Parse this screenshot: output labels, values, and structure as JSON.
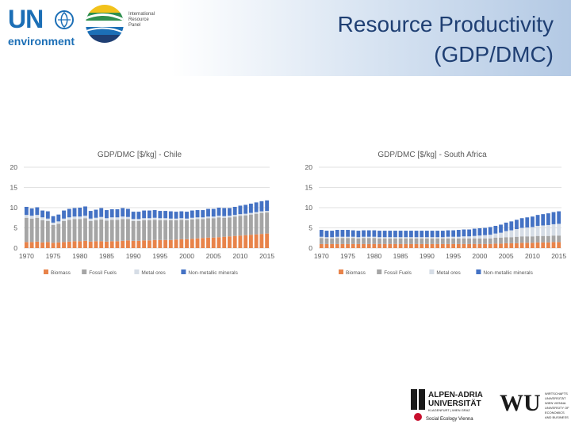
{
  "header": {
    "title": "Resource Productivity\n(GDP/DMC)",
    "un_letters": "UN",
    "un_sub": "environment",
    "irp_text": "International\nResource\nPanel"
  },
  "legend": [
    "Biomass",
    "Fossil Fuels",
    "Metal ores",
    "Non-metallic minerals"
  ],
  "colors": {
    "biomass": "#e8834a",
    "fossil": "#a5a5a5",
    "metal": "#d6dde6",
    "nonmetal": "#4472c4",
    "title_blue": "#1f3f73",
    "un_blue": "#1c6fb6"
  },
  "footer": {
    "aau_text": "ALPEN-ADRIA\nUNIVERSITÄT",
    "aau_sub": "KLAGENFURT | WIEN GRAZ",
    "aau_sub2": "Social Ecology Vienna",
    "wu_text": "WU",
    "wu_sub": "WIRTSCHAFTS\nUNIVERSITÄT\nWIEN VIENNA\nUNIVERSITY OF\nECONOMICS\nAND BUSINESS"
  },
  "chart_data": [
    {
      "type": "bar",
      "stacked": true,
      "title": "GDP/DMC [$/kg] - Chile",
      "ylim": [
        0,
        20
      ],
      "yticks": [
        0,
        5,
        10,
        15,
        20
      ],
      "xticks": [
        "1970",
        "1975",
        "1980",
        "1985",
        "1990",
        "1995",
        "2000",
        "2005",
        "2010",
        "2015"
      ],
      "legend_position": "bottom",
      "categories": [
        1970,
        1971,
        1972,
        1973,
        1974,
        1975,
        1976,
        1977,
        1978,
        1979,
        1980,
        1981,
        1982,
        1983,
        1984,
        1985,
        1986,
        1987,
        1988,
        1989,
        1990,
        1991,
        1992,
        1993,
        1994,
        1995,
        1996,
        1997,
        1998,
        1999,
        2000,
        2001,
        2002,
        2003,
        2004,
        2005,
        2006,
        2007,
        2008,
        2009,
        2010,
        2011,
        2012,
        2013,
        2014,
        2015
      ],
      "series": [
        {
          "name": "Biomass",
          "values": [
            1.5,
            1.5,
            1.6,
            1.4,
            1.5,
            1.3,
            1.4,
            1.5,
            1.6,
            1.7,
            1.7,
            1.8,
            1.6,
            1.7,
            1.7,
            1.6,
            1.7,
            1.7,
            1.8,
            1.9,
            1.8,
            1.8,
            1.9,
            1.9,
            2.0,
            2.0,
            2.0,
            2.0,
            2.1,
            2.2,
            2.2,
            2.3,
            2.4,
            2.5,
            2.6,
            2.6,
            2.7,
            2.8,
            2.9,
            3.0,
            3.1,
            3.2,
            3.3,
            3.4,
            3.5,
            3.6
          ]
        },
        {
          "name": "Fossil Fuels",
          "values": [
            6.0,
            5.8,
            5.9,
            5.5,
            5.2,
            4.4,
            4.6,
            5.2,
            5.4,
            5.5,
            5.5,
            5.6,
            5.1,
            5.2,
            5.4,
            5.2,
            5.3,
            5.3,
            5.4,
            5.3,
            4.9,
            4.9,
            5.0,
            5.0,
            5.0,
            4.9,
            4.9,
            4.9,
            4.8,
            4.8,
            4.7,
            4.8,
            4.8,
            4.7,
            4.8,
            4.8,
            4.9,
            4.7,
            4.7,
            4.8,
            4.9,
            4.9,
            5.0,
            5.1,
            5.2,
            5.2
          ]
        },
        {
          "name": "Metal ores",
          "values": [
            0.7,
            0.7,
            0.7,
            0.7,
            0.6,
            0.6,
            0.6,
            0.6,
            0.6,
            0.6,
            0.6,
            0.6,
            0.6,
            0.6,
            0.6,
            0.6,
            0.6,
            0.6,
            0.6,
            0.5,
            0.5,
            0.5,
            0.5,
            0.5,
            0.5,
            0.5,
            0.5,
            0.4,
            0.4,
            0.4,
            0.4,
            0.4,
            0.4,
            0.4,
            0.4,
            0.4,
            0.4,
            0.4,
            0.4,
            0.4,
            0.4,
            0.4,
            0.4,
            0.4,
            0.4,
            0.4
          ]
        },
        {
          "name": "Non-metallic minerals",
          "values": [
            2.0,
            1.8,
            1.9,
            1.7,
            1.8,
            1.6,
            1.7,
            2.0,
            2.1,
            2.1,
            2.2,
            2.3,
            1.9,
            2.0,
            2.2,
            2.0,
            2.0,
            2.0,
            2.1,
            2.0,
            1.8,
            1.8,
            1.9,
            1.9,
            1.9,
            1.8,
            1.8,
            1.8,
            1.7,
            1.7,
            1.7,
            1.8,
            1.8,
            1.8,
            1.9,
            1.9,
            2.0,
            2.0,
            1.9,
            2.0,
            2.1,
            2.2,
            2.3,
            2.4,
            2.5,
            2.6
          ]
        }
      ]
    },
    {
      "type": "bar",
      "stacked": true,
      "title": "GDP/DMC [$/kg] - South Africa",
      "ylim": [
        0,
        20
      ],
      "yticks": [
        0,
        5,
        10,
        15,
        20
      ],
      "xticks": [
        "1970",
        "1975",
        "1980",
        "1985",
        "1990",
        "1995",
        "2000",
        "2005",
        "2010",
        "2015"
      ],
      "legend_position": "bottom",
      "categories": [
        1970,
        1971,
        1972,
        1973,
        1974,
        1975,
        1976,
        1977,
        1978,
        1979,
        1980,
        1981,
        1982,
        1983,
        1984,
        1985,
        1986,
        1987,
        1988,
        1989,
        1990,
        1991,
        1992,
        1993,
        1994,
        1995,
        1996,
        1997,
        1998,
        1999,
        2000,
        2001,
        2002,
        2003,
        2004,
        2005,
        2006,
        2007,
        2008,
        2009,
        2010,
        2011,
        2012,
        2013,
        2014,
        2015
      ],
      "series": [
        {
          "name": "Biomass",
          "values": [
            1.0,
            1.0,
            1.0,
            1.0,
            1.0,
            1.0,
            1.0,
            1.0,
            1.0,
            1.0,
            1.0,
            1.0,
            1.0,
            1.0,
            1.0,
            1.0,
            1.0,
            1.0,
            1.0,
            1.0,
            1.0,
            1.0,
            1.0,
            1.0,
            1.0,
            1.0,
            1.0,
            1.0,
            1.0,
            1.0,
            1.0,
            1.0,
            1.0,
            1.1,
            1.1,
            1.2,
            1.2,
            1.2,
            1.3,
            1.3,
            1.3,
            1.4,
            1.4,
            1.4,
            1.5,
            1.5
          ]
        },
        {
          "name": "Fossil Fuels",
          "values": [
            1.5,
            1.4,
            1.4,
            1.5,
            1.5,
            1.5,
            1.5,
            1.4,
            1.5,
            1.5,
            1.5,
            1.4,
            1.4,
            1.4,
            1.4,
            1.4,
            1.4,
            1.4,
            1.4,
            1.4,
            1.4,
            1.4,
            1.4,
            1.4,
            1.4,
            1.4,
            1.4,
            1.4,
            1.4,
            1.4,
            1.4,
            1.4,
            1.4,
            1.5,
            1.5,
            1.5,
            1.5,
            1.6,
            1.6,
            1.6,
            1.6,
            1.6,
            1.6,
            1.6,
            1.6,
            1.6
          ]
        },
        {
          "name": "Metal ores",
          "values": [
            0.3,
            0.3,
            0.3,
            0.3,
            0.3,
            0.3,
            0.3,
            0.3,
            0.3,
            0.3,
            0.3,
            0.3,
            0.3,
            0.3,
            0.3,
            0.3,
            0.3,
            0.3,
            0.3,
            0.3,
            0.3,
            0.3,
            0.3,
            0.3,
            0.4,
            0.4,
            0.4,
            0.5,
            0.5,
            0.6,
            0.7,
            0.8,
            0.9,
            1.0,
            1.2,
            1.5,
            1.7,
            1.9,
            2.1,
            2.2,
            2.3,
            2.5,
            2.6,
            2.7,
            2.8,
            2.9
          ]
        },
        {
          "name": "Non-metallic minerals",
          "values": [
            1.7,
            1.6,
            1.6,
            1.7,
            1.7,
            1.7,
            1.6,
            1.6,
            1.6,
            1.6,
            1.6,
            1.6,
            1.6,
            1.6,
            1.6,
            1.6,
            1.6,
            1.6,
            1.6,
            1.6,
            1.6,
            1.6,
            1.6,
            1.6,
            1.6,
            1.6,
            1.7,
            1.7,
            1.7,
            1.8,
            1.8,
            1.8,
            1.9,
            1.9,
            2.0,
            2.1,
            2.2,
            2.3,
            2.4,
            2.5,
            2.6,
            2.7,
            2.8,
            2.9,
            3.0,
            3.1
          ]
        }
      ]
    }
  ]
}
